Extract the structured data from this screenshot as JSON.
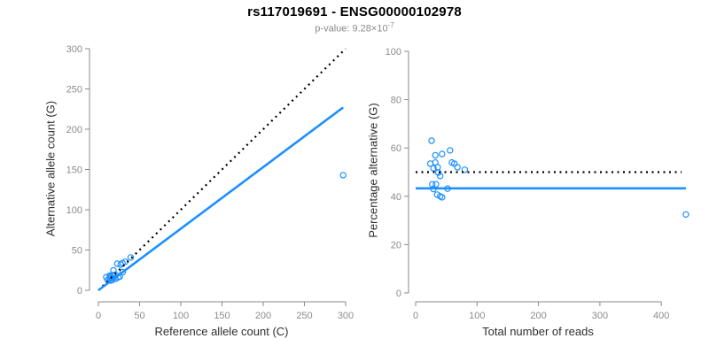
{
  "header": {
    "title": "rs117019691 - ENSG00000102978",
    "pvalue_prefix": "p-value: 9.28×10",
    "pvalue_exponent": "-7"
  },
  "colors": {
    "accent_blue": "#1E90FF",
    "identity_black": "#000000",
    "axis_gray": "#8a8a8a",
    "tick_label_gray": "#8c8c8c",
    "axis_title_dark": "#2e2e2e"
  },
  "chart_data": [
    {
      "type": "scatter",
      "xlabel": "Reference allele count (C)",
      "ylabel": "Alternative allele count (G)",
      "xlim": [
        0,
        300
      ],
      "ylim": [
        0,
        300
      ],
      "xticks": [
        0,
        50,
        100,
        150,
        200,
        250,
        300
      ],
      "yticks": [
        0,
        50,
        100,
        150,
        200,
        250,
        300
      ],
      "grid": false,
      "legend": "none",
      "point_style": "open-circle",
      "point_color": "#1E90FF",
      "points": [
        [
          9.6,
          16.4
        ],
        [
          13.8,
          18.2
        ],
        [
          18.3,
          24.7
        ],
        [
          23.0,
          33.0
        ],
        [
          11.2,
          12.8
        ],
        [
          14.7,
          17.3
        ],
        [
          17.3,
          18.7
        ],
        [
          14.0,
          15.0
        ],
        [
          27.1,
          31.9
        ],
        [
          29.3,
          33.7
        ],
        [
          32.6,
          35.4
        ],
        [
          39.2,
          40.8
        ],
        [
          18.6,
          18.4
        ],
        [
          20.6,
          19.4
        ],
        [
          14.9,
          12.1
        ],
        [
          18.2,
          14.8
        ],
        [
          16.5,
          12.5
        ],
        [
          29.5,
          22.5
        ],
        [
          20.8,
          14.2
        ],
        [
          24.0,
          16.0
        ],
        [
          26.0,
          17.0
        ],
        [
          297.0,
          143.0
        ]
      ],
      "lines": [
        {
          "name": "identity-line",
          "style": "dotted",
          "color": "#000000",
          "x1": 0,
          "y1": 0,
          "x2": 300,
          "y2": 300
        },
        {
          "name": "fit-line",
          "style": "solid",
          "color": "#1E90FF",
          "x1": 0,
          "y1": 0,
          "x2": 297,
          "y2": 227
        }
      ]
    },
    {
      "type": "scatter",
      "xlabel": "Total number of reads",
      "ylabel": "Percentage alternative (G)",
      "xlim": [
        0,
        450
      ],
      "ylim": [
        0,
        100
      ],
      "xticks": [
        0,
        100,
        200,
        300,
        400
      ],
      "yticks": [
        0,
        20,
        40,
        60,
        80,
        100
      ],
      "grid": false,
      "legend": "none",
      "point_style": "open-circle",
      "point_color": "#1E90FF",
      "points": [
        [
          26,
          63.0
        ],
        [
          32,
          57.0
        ],
        [
          43,
          57.5
        ],
        [
          56,
          59.0
        ],
        [
          24,
          53.5
        ],
        [
          32,
          54.0
        ],
        [
          36,
          52.0
        ],
        [
          29,
          51.6
        ],
        [
          59,
          54.0
        ],
        [
          63,
          53.5
        ],
        [
          68,
          52.0
        ],
        [
          80,
          51.0
        ],
        [
          37,
          49.8
        ],
        [
          40,
          48.4
        ],
        [
          27,
          45.0
        ],
        [
          33,
          45.0
        ],
        [
          29,
          43.0
        ],
        [
          52,
          43.2
        ],
        [
          35,
          40.7
        ],
        [
          40,
          40.0
        ],
        [
          43,
          39.6
        ],
        [
          440,
          32.5
        ]
      ],
      "lines": [
        {
          "name": "null-line",
          "style": "dotted",
          "color": "#000000",
          "x1": 0,
          "y1": 50,
          "x2": 433,
          "y2": 50
        },
        {
          "name": "fit-line",
          "style": "solid",
          "color": "#1E90FF",
          "x1": 0,
          "y1": 43.3,
          "x2": 440,
          "y2": 43.3
        }
      ]
    }
  ]
}
